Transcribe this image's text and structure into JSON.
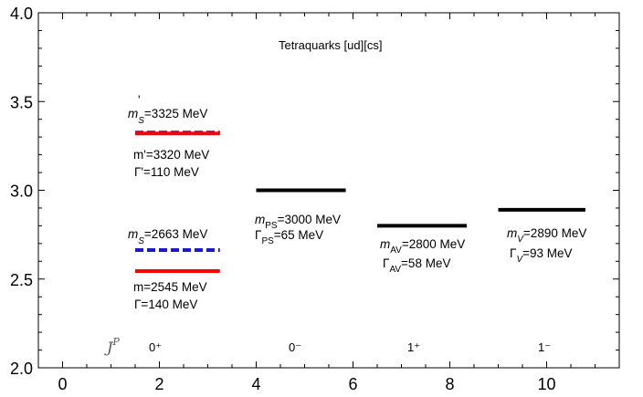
{
  "chart_data": {
    "type": "scatter",
    "title": "Tetraquarks [ud][cs]",
    "xlim": [
      -0.5,
      11.5
    ],
    "ylim": [
      2.0,
      4.0
    ],
    "xticks": [
      0,
      2,
      4,
      6,
      8,
      10
    ],
    "yticks": [
      2.0,
      2.5,
      3.0,
      3.5,
      4.0
    ],
    "xtick_labels": [
      "0",
      "2",
      "4",
      "6",
      "8",
      "10"
    ],
    "ytick_labels": [
      "2.0",
      "2.5",
      "3.0",
      "3.5",
      "4.0"
    ],
    "grid": false,
    "levels": [
      {
        "name": "m_S'",
        "x": [
          1.5,
          3.25
        ],
        "y": 3.325,
        "color": "#1a1acc",
        "style": "dashed"
      },
      {
        "name": "m'",
        "x": [
          1.5,
          3.25
        ],
        "y": 3.32,
        "color": "#ff0000",
        "style": "solid"
      },
      {
        "name": "m_S",
        "x": [
          1.5,
          3.25
        ],
        "y": 2.663,
        "color": "#1a1acc",
        "style": "dashed"
      },
      {
        "name": "m",
        "x": [
          1.5,
          3.25
        ],
        "y": 2.545,
        "color": "#ff0000",
        "style": "solid"
      },
      {
        "name": "m_PS",
        "x": [
          4.0,
          5.85
        ],
        "y": 3.0,
        "color": "#000000",
        "style": "solid"
      },
      {
        "name": "m_AV",
        "x": [
          6.5,
          8.35
        ],
        "y": 2.8,
        "color": "#000000",
        "style": "solid"
      },
      {
        "name": "m_V",
        "x": [
          9.0,
          10.8
        ],
        "y": 2.89,
        "color": "#000000",
        "style": "solid"
      }
    ],
    "annotations": {
      "ms_prime": "=3325 MeV",
      "m_prime": "m'=3320 MeV",
      "gamma_prime": "Γ'=110 MeV",
      "ms": "=2663 MeV",
      "m": "m=2545 MeV",
      "gamma": "Γ=140 MeV",
      "mps": "=3000 MeV",
      "gps": "=65 MeV",
      "mav": "=2800 MeV",
      "gav": "=58 MeV",
      "mv": "=2890 MeV",
      "gv": "=93 MeV"
    },
    "jp_label": "J",
    "jp_superscript": "P",
    "jp_values": [
      "0⁺",
      "0⁻",
      "1⁺",
      "1⁻"
    ]
  }
}
